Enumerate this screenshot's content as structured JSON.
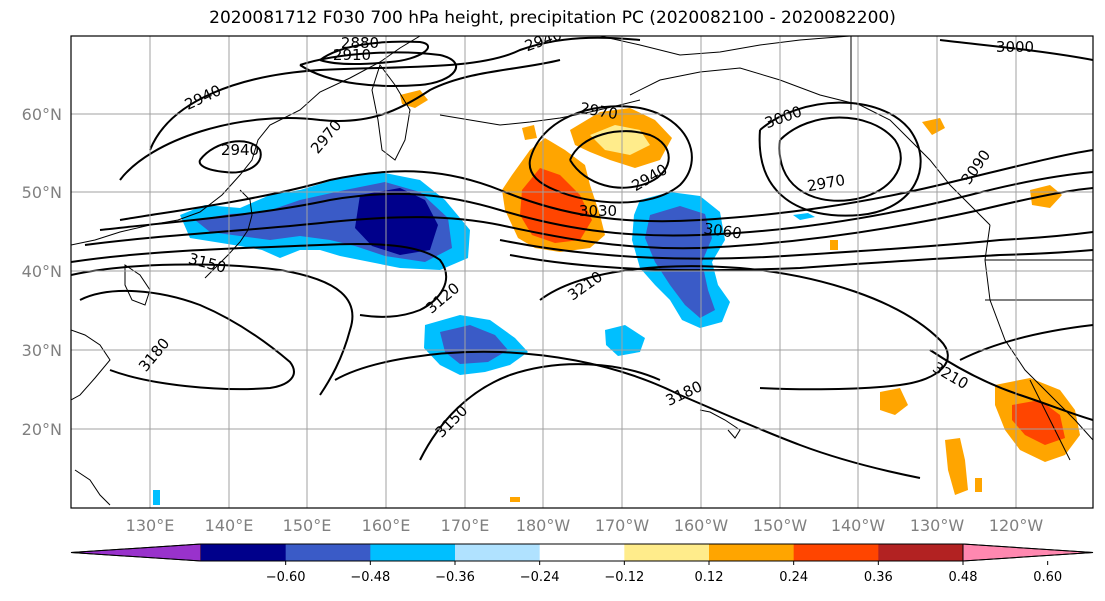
{
  "title": "2020081712 F030 700 hPa height, precipitation PC (2020082100 - 2020082200)",
  "lat_labels": [
    "60°N",
    "50°N",
    "40°N",
    "30°N",
    "20°N"
  ],
  "lon_labels": [
    "130°E",
    "140°E",
    "150°E",
    "160°E",
    "170°E",
    "180°W",
    "170°W",
    "160°W",
    "150°W",
    "140°W",
    "130°W",
    "120°W"
  ],
  "contour_labels": [
    "2880",
    "2910",
    "2940",
    "2940",
    "3000",
    "2940",
    "2970",
    "2970",
    "3000",
    "2970",
    "3090",
    "2940",
    "3030",
    "3060",
    "3150",
    "3120",
    "3210",
    "3180",
    "3150",
    "3180",
    "3210"
  ],
  "colorbar": {
    "ticks": [
      "−0.60",
      "−0.48",
      "−0.36",
      "−0.24",
      "−0.12",
      "0.12",
      "0.24",
      "0.36",
      "0.48",
      "0.60"
    ],
    "colors": [
      "#9932cc",
      "#00008b",
      "#3a5bc7",
      "#00bfff",
      "#b0e2ff",
      "#ffffff",
      "#ffec8b",
      "#ffa500",
      "#ff4500",
      "#b22222",
      "#ff88b0"
    ]
  },
  "colors": {
    "grid": "#a0a0a0",
    "contour": "#000000",
    "coast": "#000000"
  }
}
